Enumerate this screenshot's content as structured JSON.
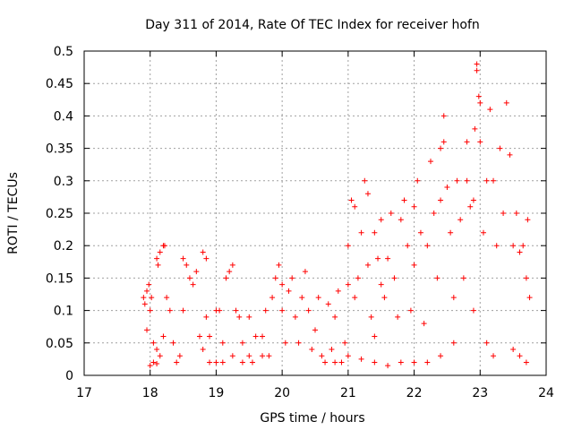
{
  "chart_data": {
    "type": "scatter",
    "title": "Day 311 of 2014, Rate Of TEC Index for receiver hofn",
    "xlabel": "GPS time / hours",
    "ylabel": "ROTI / TECUs",
    "xlim": [
      17,
      24
    ],
    "ylim": [
      0,
      0.5
    ],
    "x_ticks": [
      17,
      18,
      19,
      20,
      21,
      22,
      23,
      24
    ],
    "x_tick_labels": [
      "17",
      "18",
      "19",
      "20",
      "21",
      "22",
      "23",
      "24"
    ],
    "y_ticks": [
      0,
      0.05,
      0.1,
      0.15,
      0.2,
      0.25,
      0.3,
      0.35,
      0.4,
      0.45,
      0.5
    ],
    "y_tick_labels": [
      "0",
      "0.05",
      "0.1",
      "0.15",
      "0.2",
      "0.25",
      "0.3",
      "0.35",
      "0.4",
      "0.45",
      "0.5"
    ],
    "grid": true,
    "marker": "+",
    "color": "#ff0000",
    "series": [
      {
        "name": "ROTI",
        "points": [
          [
            17.9,
            0.12
          ],
          [
            17.92,
            0.11
          ],
          [
            17.95,
            0.13
          ],
          [
            17.98,
            0.14
          ],
          [
            18.0,
            0.1
          ],
          [
            18.02,
            0.12
          ],
          [
            17.95,
            0.07
          ],
          [
            18.05,
            0.05
          ],
          [
            18.1,
            0.04
          ],
          [
            18.05,
            0.02
          ],
          [
            18.0,
            0.015
          ],
          [
            18.1,
            0.018
          ],
          [
            18.15,
            0.03
          ],
          [
            18.2,
            0.06
          ],
          [
            18.1,
            0.18
          ],
          [
            18.12,
            0.17
          ],
          [
            18.15,
            0.19
          ],
          [
            18.2,
            0.2
          ],
          [
            18.22,
            0.2
          ],
          [
            18.25,
            0.12
          ],
          [
            18.3,
            0.1
          ],
          [
            18.35,
            0.05
          ],
          [
            18.4,
            0.02
          ],
          [
            18.45,
            0.03
          ],
          [
            18.5,
            0.1
          ],
          [
            18.5,
            0.18
          ],
          [
            18.55,
            0.17
          ],
          [
            18.6,
            0.15
          ],
          [
            18.65,
            0.14
          ],
          [
            18.7,
            0.16
          ],
          [
            18.75,
            0.06
          ],
          [
            18.8,
            0.04
          ],
          [
            18.8,
            0.19
          ],
          [
            18.85,
            0.18
          ],
          [
            18.85,
            0.09
          ],
          [
            18.9,
            0.06
          ],
          [
            18.9,
            0.02
          ],
          [
            19.0,
            0.1
          ],
          [
            19.0,
            0.02
          ],
          [
            19.05,
            0.1
          ],
          [
            19.1,
            0.05
          ],
          [
            19.1,
            0.02
          ],
          [
            19.15,
            0.15
          ],
          [
            19.2,
            0.16
          ],
          [
            19.25,
            0.17
          ],
          [
            19.25,
            0.03
          ],
          [
            19.3,
            0.1
          ],
          [
            19.35,
            0.09
          ],
          [
            19.4,
            0.05
          ],
          [
            19.4,
            0.02
          ],
          [
            19.5,
            0.09
          ],
          [
            19.5,
            0.03
          ],
          [
            19.55,
            0.02
          ],
          [
            19.6,
            0.06
          ],
          [
            19.7,
            0.03
          ],
          [
            19.7,
            0.06
          ],
          [
            19.75,
            0.1
          ],
          [
            19.8,
            0.03
          ],
          [
            19.85,
            0.12
          ],
          [
            19.9,
            0.15
          ],
          [
            19.95,
            0.17
          ],
          [
            20.0,
            0.14
          ],
          [
            20.0,
            0.1
          ],
          [
            20.05,
            0.05
          ],
          [
            20.1,
            0.13
          ],
          [
            20.15,
            0.15
          ],
          [
            20.2,
            0.09
          ],
          [
            20.25,
            0.05
          ],
          [
            20.3,
            0.12
          ],
          [
            20.35,
            0.16
          ],
          [
            20.4,
            0.1
          ],
          [
            20.45,
            0.04
          ],
          [
            20.5,
            0.07
          ],
          [
            20.55,
            0.12
          ],
          [
            20.6,
            0.03
          ],
          [
            20.65,
            0.02
          ],
          [
            20.7,
            0.11
          ],
          [
            20.75,
            0.04
          ],
          [
            20.8,
            0.09
          ],
          [
            20.85,
            0.13
          ],
          [
            20.9,
            0.02
          ],
          [
            20.95,
            0.05
          ],
          [
            21.0,
            0.2
          ],
          [
            21.0,
            0.14
          ],
          [
            21.05,
            0.27
          ],
          [
            21.1,
            0.26
          ],
          [
            21.1,
            0.12
          ],
          [
            21.15,
            0.15
          ],
          [
            21.2,
            0.22
          ],
          [
            21.25,
            0.3
          ],
          [
            21.3,
            0.28
          ],
          [
            21.3,
            0.17
          ],
          [
            21.35,
            0.09
          ],
          [
            21.4,
            0.22
          ],
          [
            21.4,
            0.06
          ],
          [
            21.45,
            0.18
          ],
          [
            21.5,
            0.24
          ],
          [
            21.5,
            0.14
          ],
          [
            21.55,
            0.12
          ],
          [
            21.6,
            0.18
          ],
          [
            21.65,
            0.25
          ],
          [
            21.7,
            0.15
          ],
          [
            21.75,
            0.09
          ],
          [
            21.8,
            0.24
          ],
          [
            21.85,
            0.27
          ],
          [
            21.9,
            0.2
          ],
          [
            21.95,
            0.1
          ],
          [
            22.0,
            0.26
          ],
          [
            22.0,
            0.17
          ],
          [
            22.05,
            0.3
          ],
          [
            22.1,
            0.22
          ],
          [
            22.15,
            0.08
          ],
          [
            22.2,
            0.2
          ],
          [
            22.25,
            0.33
          ],
          [
            22.3,
            0.25
          ],
          [
            22.35,
            0.15
          ],
          [
            22.4,
            0.35
          ],
          [
            22.4,
            0.27
          ],
          [
            22.45,
            0.36
          ],
          [
            22.45,
            0.4
          ],
          [
            22.5,
            0.29
          ],
          [
            22.55,
            0.22
          ],
          [
            22.6,
            0.12
          ],
          [
            22.65,
            0.3
          ],
          [
            22.7,
            0.24
          ],
          [
            22.75,
            0.15
          ],
          [
            22.8,
            0.3
          ],
          [
            22.8,
            0.36
          ],
          [
            22.85,
            0.26
          ],
          [
            22.9,
            0.27
          ],
          [
            22.92,
            0.38
          ],
          [
            22.95,
            0.47
          ],
          [
            22.95,
            0.48
          ],
          [
            22.98,
            0.43
          ],
          [
            23.0,
            0.42
          ],
          [
            23.0,
            0.36
          ],
          [
            23.05,
            0.22
          ],
          [
            23.1,
            0.3
          ],
          [
            23.15,
            0.41
          ],
          [
            23.2,
            0.3
          ],
          [
            23.25,
            0.2
          ],
          [
            23.3,
            0.35
          ],
          [
            23.35,
            0.25
          ],
          [
            23.4,
            0.42
          ],
          [
            23.45,
            0.34
          ],
          [
            23.5,
            0.2
          ],
          [
            23.55,
            0.25
          ],
          [
            23.6,
            0.19
          ],
          [
            23.65,
            0.2
          ],
          [
            23.7,
            0.15
          ],
          [
            23.72,
            0.24
          ],
          [
            23.75,
            0.12
          ],
          [
            23.5,
            0.04
          ],
          [
            23.6,
            0.03
          ],
          [
            23.7,
            0.02
          ],
          [
            23.2,
            0.03
          ],
          [
            23.1,
            0.05
          ],
          [
            22.9,
            0.1
          ],
          [
            22.6,
            0.05
          ],
          [
            22.4,
            0.03
          ],
          [
            22.2,
            0.02
          ],
          [
            22.0,
            0.02
          ],
          [
            21.8,
            0.02
          ],
          [
            21.6,
            0.015
          ],
          [
            21.4,
            0.02
          ],
          [
            21.2,
            0.025
          ],
          [
            21.0,
            0.03
          ],
          [
            20.8,
            0.02
          ]
        ]
      }
    ]
  }
}
